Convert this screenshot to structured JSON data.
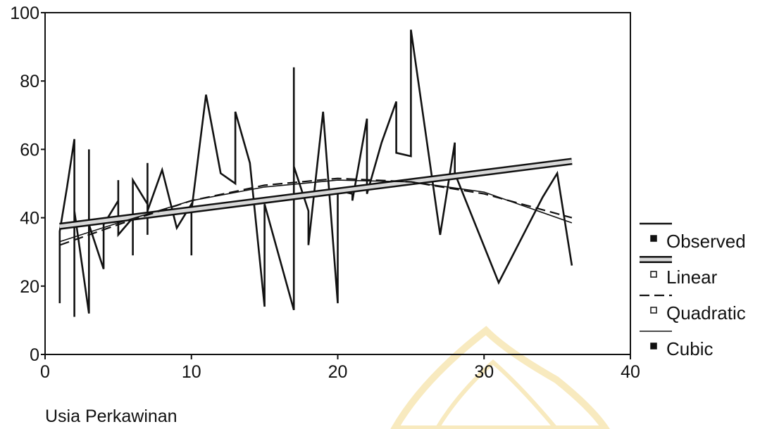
{
  "chart_data": {
    "type": "line",
    "title": "",
    "xlabel": "Usia Perkawinan",
    "ylabel": "",
    "xlim": [
      0,
      40
    ],
    "ylim": [
      0,
      100
    ],
    "x_ticks": [
      "0",
      "10",
      "20",
      "30",
      "40"
    ],
    "y_ticks": [
      "0",
      "20",
      "40",
      "60",
      "80",
      "100"
    ],
    "grid": false,
    "legend_position": "right",
    "series": [
      {
        "name": "Observed",
        "style": "solid-jagged",
        "points": [
          [
            1,
            15
          ],
          [
            1,
            36
          ],
          [
            1.5,
            49
          ],
          [
            2,
            63
          ],
          [
            2,
            11
          ],
          [
            2,
            42
          ],
          [
            3,
            12
          ],
          [
            3,
            60
          ],
          [
            3,
            38
          ],
          [
            4,
            25
          ],
          [
            4,
            38
          ],
          [
            5,
            45
          ],
          [
            5,
            51
          ],
          [
            5,
            35
          ],
          [
            6,
            40
          ],
          [
            6,
            29
          ],
          [
            6,
            51
          ],
          [
            7,
            44
          ],
          [
            7,
            56
          ],
          [
            7,
            35
          ],
          [
            7,
            42
          ],
          [
            8,
            54
          ],
          [
            9,
            37
          ],
          [
            10,
            44
          ],
          [
            10,
            29
          ],
          [
            10,
            42
          ],
          [
            11,
            76
          ],
          [
            12,
            53
          ],
          [
            13,
            50
          ],
          [
            13,
            71
          ],
          [
            14,
            56
          ],
          [
            15,
            14
          ],
          [
            15,
            44
          ],
          [
            17,
            13
          ],
          [
            17,
            84
          ],
          [
            17,
            55
          ],
          [
            18,
            42
          ],
          [
            18,
            32
          ],
          [
            19,
            71
          ],
          [
            20,
            15
          ],
          [
            20,
            48
          ],
          [
            21,
            47
          ],
          [
            21,
            45
          ],
          [
            22,
            69
          ],
          [
            22,
            47
          ],
          [
            23,
            62
          ],
          [
            24,
            74
          ],
          [
            24,
            59
          ],
          [
            25,
            58
          ],
          [
            25,
            95
          ],
          [
            27,
            35
          ],
          [
            28,
            62
          ],
          [
            28,
            53
          ],
          [
            31,
            21
          ],
          [
            34,
            46
          ],
          [
            35,
            53
          ],
          [
            36,
            26
          ]
        ]
      },
      {
        "name": "Linear",
        "style": "thick-hollow",
        "points": [
          [
            1,
            37.5
          ],
          [
            36,
            56.5
          ]
        ]
      },
      {
        "name": "Quadratic",
        "style": "dashed",
        "points": [
          [
            1,
            32
          ],
          [
            5,
            38
          ],
          [
            10,
            45
          ],
          [
            15,
            49.5
          ],
          [
            20,
            51.5
          ],
          [
            25,
            50.5
          ],
          [
            30,
            47
          ],
          [
            36,
            40
          ]
        ]
      },
      {
        "name": "Cubic",
        "style": "thin-solid",
        "points": [
          [
            1,
            33
          ],
          [
            5,
            38.5
          ],
          [
            10,
            45
          ],
          [
            15,
            49
          ],
          [
            20,
            51
          ],
          [
            25,
            50.5
          ],
          [
            30,
            47.5
          ],
          [
            36,
            38.5
          ]
        ]
      }
    ]
  },
  "colors": {
    "background": "#ffffff",
    "ink": "#111111",
    "linear_fill": "#d8d8d8",
    "watermark": "#f3d98c"
  }
}
